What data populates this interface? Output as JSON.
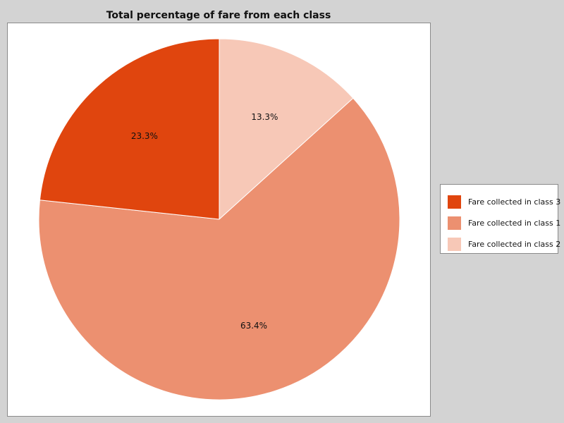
{
  "chart_data": {
    "type": "pie",
    "title": "Total percentage of fare from each class",
    "slices": [
      {
        "label": "Fare collected in class 2",
        "value": 13.3,
        "value_label": "13.3%",
        "color": "#f7c8b7"
      },
      {
        "label": "Fare collected in class 1",
        "value": 63.4,
        "value_label": "63.4%",
        "color": "#ec9070"
      },
      {
        "label": "Fare collected in class 3",
        "value": 23.3,
        "value_label": "23.3%",
        "color": "#e0450e"
      }
    ],
    "start_position": "12 o'clock",
    "direction": "clockwise",
    "legend": {
      "position": "right",
      "items": [
        {
          "label": "Fare collected in class 3",
          "color": "#e0450e"
        },
        {
          "label": "Fare collected in class 1",
          "color": "#ec9070"
        },
        {
          "label": "Fare collected in class 2",
          "color": "#f7c8b7"
        }
      ]
    }
  },
  "colors": {
    "background": "#d3d3d3",
    "plot_background": "#ffffff",
    "border": "#8a8a8a"
  }
}
